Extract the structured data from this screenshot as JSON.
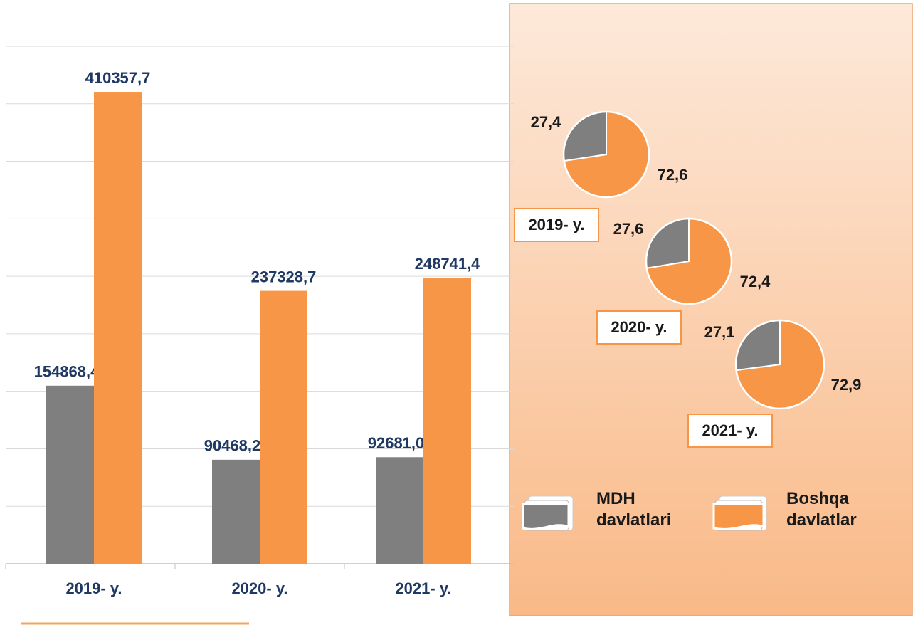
{
  "chart_data": [
    {
      "type": "bar",
      "categories": [
        "2019- y.",
        "2020- y.",
        "2021- y."
      ],
      "series": [
        {
          "name": "MDH davlatlari",
          "color": "#7f7f7f",
          "values": [
            154868.4,
            90468.2,
            92681.0
          ],
          "value_labels": [
            "154868,4",
            "90468,2",
            "92681,0"
          ]
        },
        {
          "name": "Boshqa davlatlar",
          "color": "#f79646",
          "values": [
            410357.7,
            237328.7,
            248741.4
          ],
          "value_labels": [
            "410357,7",
            "237328,7",
            "248741,4"
          ]
        }
      ],
      "ylim": [
        0,
        450000
      ],
      "yticks": [
        0,
        50000,
        100000,
        150000,
        200000,
        250000,
        300000,
        350000,
        400000,
        450000
      ],
      "grid": true
    },
    {
      "type": "pie",
      "pies": [
        {
          "label": "2019- y.",
          "values": [
            27.4,
            72.6
          ],
          "value_labels": [
            "27,4",
            "72,6"
          ]
        },
        {
          "label": "2020- y.",
          "values": [
            27.6,
            72.4
          ],
          "value_labels": [
            "27,6",
            "72,4"
          ]
        },
        {
          "label": "2021- y.",
          "values": [
            27.1,
            72.9
          ],
          "value_labels": [
            "27,1",
            "72,9"
          ]
        }
      ]
    }
  ]
}
